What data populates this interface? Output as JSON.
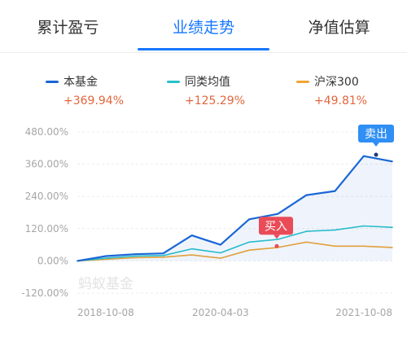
{
  "tabs": [
    {
      "label": "累计盈亏",
      "active": false
    },
    {
      "label": "业绩走势",
      "active": true
    },
    {
      "label": "净值估算",
      "active": false
    }
  ],
  "legend": [
    {
      "name": "本基金",
      "pct": "+369.94%",
      "color": "#1a66d6"
    },
    {
      "name": "同类均值",
      "pct": "+125.29%",
      "color": "#27c2c9"
    },
    {
      "name": "沪深300",
      "pct": "+49.81%",
      "color": "#f0a531"
    }
  ],
  "markers": {
    "buy_label": "买入",
    "sell_label": "卖出",
    "buy_color": "#e94b57",
    "sell_color": "#2f8ff5"
  },
  "watermark": "蚂蚁基金",
  "chart_data": {
    "type": "line",
    "x": [
      "2018-10-08",
      "2019-02",
      "2019-06",
      "2019-10",
      "2020-01",
      "2020-04-03",
      "2020-07",
      "2020-10",
      "2021-01",
      "2021-04",
      "2021-07",
      "2021-10-08"
    ],
    "x_tick_labels": [
      "2018-10-08",
      "2020-04-03",
      "2021-10-08"
    ],
    "y_tick_labels": [
      "480.00%",
      "360.00%",
      "240.00%",
      "120.00%",
      "0.00%",
      "-120.00%"
    ],
    "ylim": [
      -120,
      480
    ],
    "grid": true,
    "legend_position": "top",
    "series": [
      {
        "name": "本基金",
        "values": [
          0,
          18,
          25,
          28,
          95,
          60,
          155,
          175,
          245,
          260,
          390,
          370
        ]
      },
      {
        "name": "同类均值",
        "values": [
          0,
          10,
          18,
          20,
          45,
          30,
          70,
          80,
          110,
          115,
          130,
          125
        ]
      },
      {
        "name": "沪深300",
        "values": [
          0,
          6,
          12,
          14,
          22,
          10,
          40,
          50,
          70,
          55,
          55,
          50
        ]
      }
    ]
  }
}
